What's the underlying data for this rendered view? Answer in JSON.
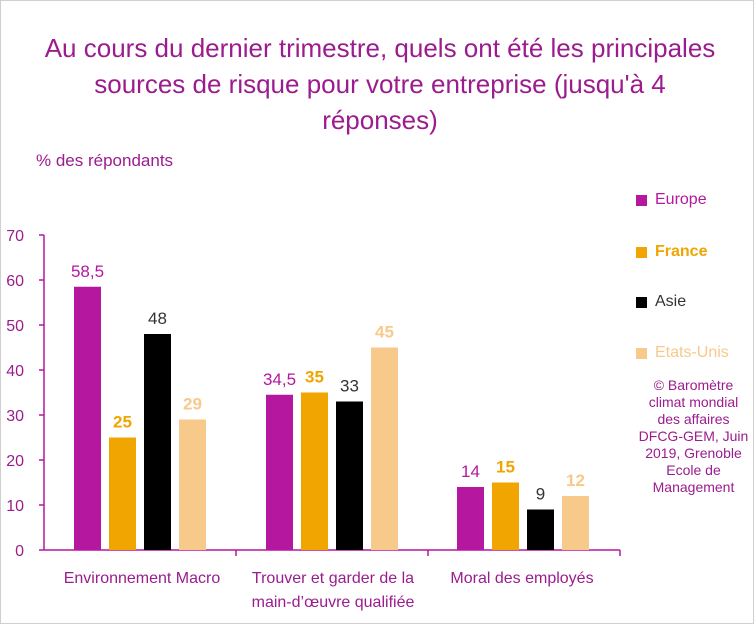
{
  "chart_data": {
    "type": "bar",
    "title": "Au cours du dernier trimestre, quels ont été les principales sources de risque pour votre entreprise (jusqu'à 4 réponses)",
    "ylabel": "% des répondants",
    "xlabel": "",
    "ylim": [
      0,
      70
    ],
    "yticks": [
      0,
      10,
      20,
      30,
      40,
      50,
      60,
      70
    ],
    "grid": false,
    "legend_position": "right",
    "categories": [
      "Environnement Macro",
      "Trouver et garder de la main-d’œuvre qualifiée",
      "Moral des employés"
    ],
    "series": [
      {
        "name": "Europe",
        "color": "#b5179e",
        "values": [
          58.5,
          34.5,
          14
        ],
        "labels": [
          "58,5",
          "34,5",
          "14"
        ]
      },
      {
        "name": "France",
        "color": "#f0a500",
        "values": [
          25,
          35,
          15
        ],
        "labels": [
          "25",
          "35",
          "15"
        ]
      },
      {
        "name": "Asie",
        "color": "#000000",
        "values": [
          48,
          33,
          9
        ],
        "labels": [
          "48",
          "33",
          "9"
        ]
      },
      {
        "name": "Etats-Unis",
        "color": "#f7c98a",
        "values": [
          29,
          45,
          12
        ],
        "labels": [
          "29",
          "45",
          "12"
        ]
      }
    ],
    "source_note": "© Baromètre climat mondial des affaires DFCG-GEM, Juin 2019, Grenoble Ecole de Management"
  },
  "colors": {
    "title": "#9b1c8e",
    "axis": "#b5179e"
  }
}
